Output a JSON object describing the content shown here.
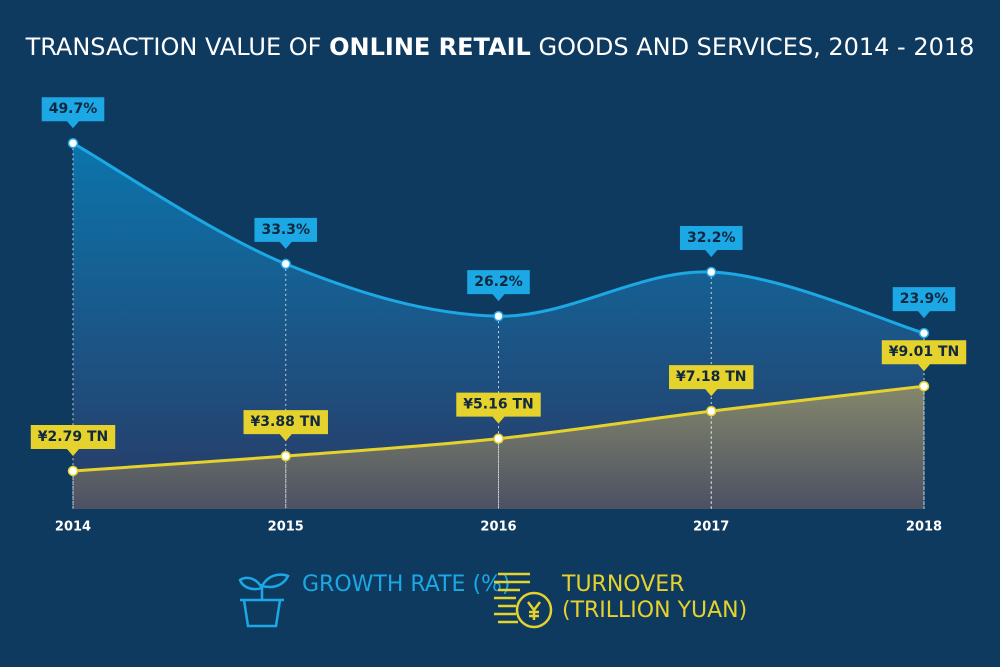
{
  "chart_data": {
    "type": "area",
    "title": [
      "TRANSACTION VALUE OF ",
      "ONLINE RETAIL",
      " GOODS AND SERVICES, 2014 - 2018"
    ],
    "x": [
      "2014",
      "2015",
      "2016",
      "2017",
      "2018"
    ],
    "ylim": [
      0,
      50
    ],
    "y2lim": [
      0,
      27
    ],
    "series": [
      {
        "name": "GROWTH RATE (%)",
        "color": "#1ba8e4",
        "values": [
          49.7,
          33.3,
          26.2,
          32.2,
          23.9
        ],
        "value_labels": [
          "49.7%",
          "33.3%",
          "26.2%",
          "32.2%",
          "23.9%"
        ]
      },
      {
        "name": "TURNOVER (TRILLION YUAN)",
        "color": "#e6d22c",
        "axis": "y2",
        "values": [
          2.79,
          3.88,
          5.16,
          7.18,
          9.01
        ],
        "value_labels": [
          "¥2.79 TN",
          "¥3.88 TN",
          "¥5.16 TN",
          "¥7.18 TN",
          "¥9.01 TN"
        ]
      }
    ]
  }
}
